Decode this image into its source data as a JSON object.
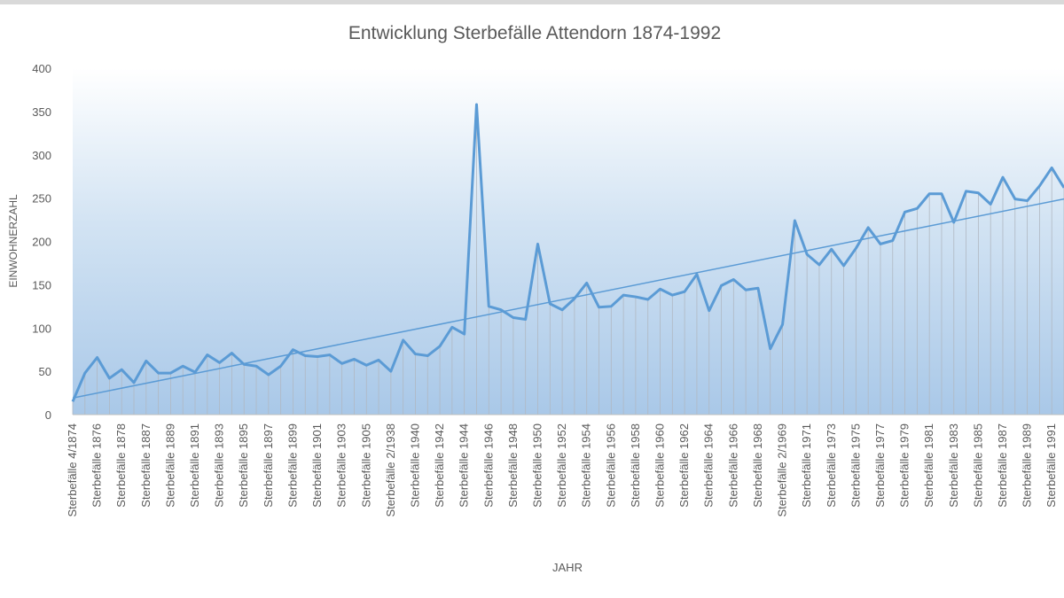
{
  "chart_data": {
    "type": "line",
    "title": "Entwicklung Sterbefälle Attendorn 1874-1992",
    "x_label": "JAHR",
    "y_label": "EINWOHNERZAHL",
    "categories": [
      "Sterbefälle 4/1874",
      null,
      "Sterbefälle 1876",
      null,
      "Sterbefälle 1878",
      null,
      "Sterbefälle 1887",
      null,
      "Sterbefälle 1889",
      null,
      "Sterbefälle 1891",
      null,
      "Sterbefälle 1893",
      null,
      "Sterbefälle 1895",
      null,
      "Sterbefälle 1897",
      null,
      "Sterbefälle 1899",
      null,
      "Sterbefälle 1901",
      null,
      "Sterbefälle 1903",
      null,
      "Sterbefälle 1905",
      null,
      "Sterbefälle 2/1938",
      null,
      "Sterbefälle 1940",
      null,
      "Sterbefälle 1942",
      null,
      "Sterbefälle 1944",
      null,
      "Sterbefälle 1946",
      null,
      "Sterbefälle 1948",
      null,
      "Sterbefälle 1950",
      null,
      "Sterbefälle 1952",
      null,
      "Sterbefälle 1954",
      null,
      "Sterbefälle 1956",
      null,
      "Sterbefälle 1958",
      null,
      "Sterbefälle 1960",
      null,
      "Sterbefälle 1962",
      null,
      "Sterbefälle 1964",
      null,
      "Sterbefälle 1966",
      null,
      "Sterbefälle 1968",
      null,
      "Sterbefälle 2/1969",
      null,
      "Sterbefälle 1971",
      null,
      "Sterbefälle 1973",
      null,
      "Sterbefälle 1975",
      null,
      "Sterbefälle 1977",
      null,
      "Sterbefälle 1979",
      null,
      "Sterbefälle 1981",
      null,
      "Sterbefälle 1983",
      null,
      "Sterbefälle 1985",
      null,
      "Sterbefälle 1987",
      null,
      "Sterbefälle 1989",
      null,
      "Sterbefälle 1991",
      null
    ],
    "values": [
      15,
      48,
      66,
      42,
      52,
      37,
      62,
      48,
      48,
      56,
      49,
      69,
      60,
      71,
      58,
      56,
      46,
      56,
      75,
      68,
      67,
      69,
      59,
      64,
      57,
      63,
      50,
      86,
      70,
      68,
      79,
      101,
      93,
      358,
      125,
      121,
      112,
      110,
      197,
      128,
      121,
      134,
      152,
      124,
      125,
      138,
      136,
      133,
      145,
      138,
      142,
      162,
      120,
      149,
      156,
      144,
      146,
      76,
      104,
      224,
      185,
      173,
      191,
      172,
      192,
      216,
      197,
      201,
      234,
      238,
      255,
      255,
      222,
      258,
      256,
      243,
      274,
      249,
      247,
      264,
      285,
      262
    ],
    "color": "#5b9bd5",
    "ylim": [
      0,
      400
    ],
    "yticks": [
      0,
      50,
      100,
      150,
      200,
      250,
      300,
      350,
      400
    ],
    "trendline": true,
    "drop_lines": true
  }
}
